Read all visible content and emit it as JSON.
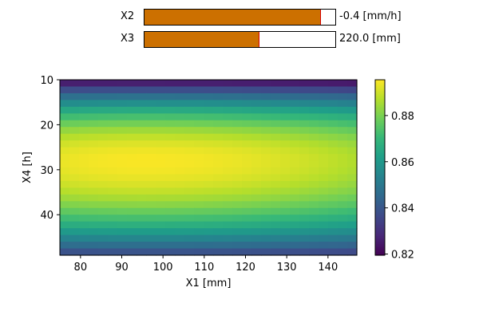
{
  "sliders": [
    {
      "label": "X2",
      "value_text": "-0.4 [mm/h]",
      "fill_fraction": 0.92
    },
    {
      "label": "X3",
      "value_text": "220.0 [mm]",
      "fill_fraction": 0.6
    }
  ],
  "colors": {
    "slider_fill": "#cc7000",
    "slider_marker": "#d40000",
    "colormap": "viridis"
  },
  "chart_data": {
    "type": "heatmap",
    "xlabel": "X1 [mm]",
    "ylabel": "X4 [h]",
    "xlim": [
      75,
      147
    ],
    "ylim": [
      49,
      10
    ],
    "y_inverted": true,
    "x_ticks": [
      80,
      90,
      100,
      110,
      120,
      130,
      140
    ],
    "y_ticks": [
      10,
      20,
      30,
      40
    ],
    "colorbar": {
      "range": [
        0.8195,
        0.8955
      ],
      "ticks": [
        0.82,
        0.84,
        0.86,
        0.88
      ],
      "tick_labels": [
        "0.82",
        "0.84",
        "0.86",
        "0.88"
      ]
    },
    "grid": false,
    "peak": {
      "x": 95,
      "y": 28,
      "value": 0.895
    },
    "value_model": "approx. smooth surface: max ~0.895 near X1=95, X4=28; ~0.82 at X4=10; ~0.835 at X4=49"
  }
}
